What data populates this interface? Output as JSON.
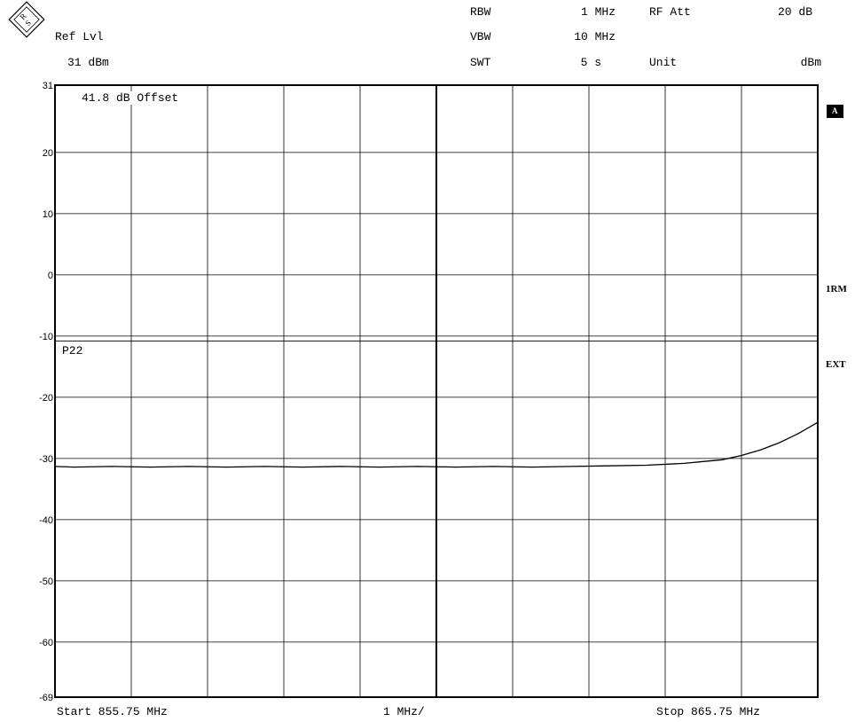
{
  "header": {
    "ref_lvl_label": "Ref Lvl",
    "ref_lvl_value": "31 dBm",
    "rbw_label": "RBW",
    "rbw_value": "1 MHz",
    "vbw_label": "VBW",
    "vbw_value": "10 MHz",
    "swt_label": "SWT",
    "swt_value": "5 s",
    "rfatt_label": "RF Att",
    "rfatt_value": "20 dB",
    "unit_label": "Unit",
    "unit_value": "dBm"
  },
  "annotations": {
    "offset": "41.8 dB Offset",
    "p22": "P22"
  },
  "side_labels": {
    "trace": "A",
    "mode": "1RM",
    "trigger": "EXT"
  },
  "footer": {
    "start": "Start 855.75 MHz",
    "span": "1 MHz/",
    "stop": "Stop 865.75 MHz"
  },
  "chart_data": {
    "type": "line",
    "xlim": [
      855.75,
      865.75
    ],
    "ylim": [
      -69,
      31
    ],
    "y_ticks": [
      {
        "value": 31,
        "label": "31"
      },
      {
        "value": 20,
        "label": "20"
      },
      {
        "value": 10,
        "label": "10"
      },
      {
        "value": 0,
        "label": "0"
      },
      {
        "value": -10,
        "label": "-10"
      },
      {
        "value": -20,
        "label": "-20"
      },
      {
        "value": -30,
        "label": "-30"
      },
      {
        "value": -40,
        "label": "-40"
      },
      {
        "value": -50,
        "label": "-50"
      },
      {
        "value": -60,
        "label": "-60"
      },
      {
        "value": -69,
        "label": "-69"
      }
    ],
    "grid": true,
    "reference_line_dbm": -10.8,
    "series": [
      {
        "x": [
          855.75,
          856.0,
          856.5,
          857.0,
          857.5,
          858.0,
          858.5,
          859.0,
          859.5,
          860.0,
          860.5,
          861.0,
          861.5,
          862.0,
          862.5,
          863.0,
          863.5,
          864.0,
          864.25,
          864.5,
          864.75,
          865.0,
          865.25,
          865.5,
          865.75
        ],
        "y": [
          -31.3,
          -31.4,
          -31.3,
          -31.4,
          -31.3,
          -31.4,
          -31.3,
          -31.4,
          -31.3,
          -31.4,
          -31.3,
          -31.4,
          -31.3,
          -31.4,
          -31.3,
          -31.2,
          -31.1,
          -30.8,
          -30.5,
          -30.2,
          -29.5,
          -28.6,
          -27.4,
          -25.9,
          -24.1
        ]
      }
    ]
  }
}
